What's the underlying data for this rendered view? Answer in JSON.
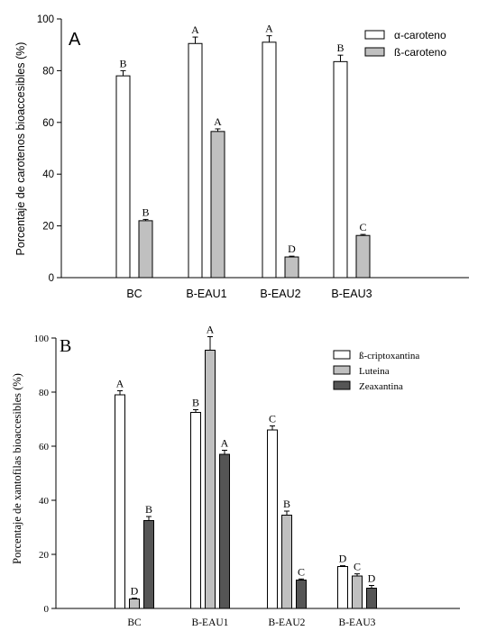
{
  "chart_data": [
    {
      "type": "bar",
      "panel_label": "A",
      "ylabel": "Porcentaje de carotenos bioaccesibles (%)",
      "xlabel": "",
      "categories": [
        "BC",
        "B-EAU1",
        "B-EAU2",
        "B-EAU3"
      ],
      "ylim": [
        0,
        100
      ],
      "yticks": [
        "0",
        "20",
        "40",
        "60",
        "80",
        "100"
      ],
      "legend_position": "top-right",
      "series": [
        {
          "name": "α-caroteno",
          "color": "#ffffff",
          "values": [
            78,
            90.5,
            91,
            83.5
          ],
          "errors": [
            2,
            2.5,
            2.5,
            2.5
          ],
          "letters": [
            "B",
            "A",
            "A",
            "B"
          ]
        },
        {
          "name": "ß-caroteno",
          "color": "#c0c0c0",
          "values": [
            22,
            56.5,
            8,
            16.3
          ],
          "errors": [
            0.5,
            1,
            0.3,
            0.4
          ],
          "letters": [
            "B",
            "A",
            "D",
            "C"
          ]
        }
      ]
    },
    {
      "type": "bar",
      "panel_label": "B",
      "ylabel": "Porcentaje de xantofilas bioaccesibles (%)",
      "xlabel": "",
      "categories": [
        "BC",
        "B-EAU1",
        "B-EAU2",
        "B-EAU3"
      ],
      "ylim": [
        0,
        100
      ],
      "yticks": [
        "0",
        "20",
        "40",
        "60",
        "80",
        "100"
      ],
      "legend_position": "top-right",
      "series": [
        {
          "name": "ß-criptoxantina",
          "color": "#ffffff",
          "values": [
            79,
            72.5,
            66,
            15.5
          ],
          "errors": [
            1.5,
            1,
            1.5,
            0.3
          ],
          "letters": [
            "A",
            "B",
            "C",
            "D"
          ]
        },
        {
          "name": "Luteina",
          "color": "#c0c0c0",
          "values": [
            3.5,
            95.5,
            34.5,
            12
          ],
          "errors": [
            0.3,
            5,
            1.5,
            0.8
          ],
          "letters": [
            "D",
            "A",
            "B",
            "C"
          ]
        },
        {
          "name": "Zeaxantina",
          "color": "#555555",
          "values": [
            32.5,
            57,
            10.5,
            7.5
          ],
          "errors": [
            1.5,
            1.5,
            0.4,
            1
          ],
          "letters": [
            "B",
            "A",
            "C",
            "D"
          ]
        }
      ]
    }
  ]
}
